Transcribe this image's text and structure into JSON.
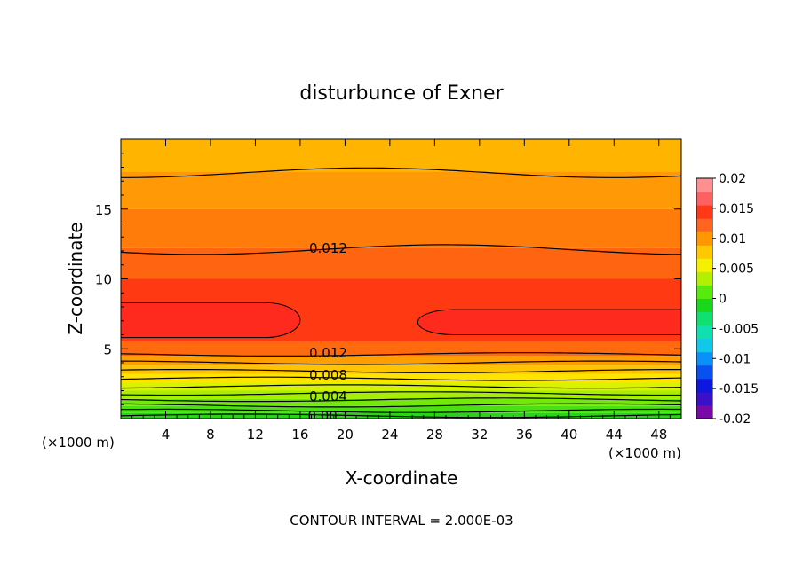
{
  "chart_data": {
    "type": "contour",
    "title": "disturbunce of Exner",
    "xlabel": "X-coordinate",
    "ylabel": "Z-coordinate",
    "x_unit_left": "(×1000 m)",
    "x_unit_right": "(×1000 m)",
    "xlim": [
      0,
      50
    ],
    "ylim": [
      0,
      20
    ],
    "x_ticks": [
      4,
      8,
      12,
      16,
      20,
      24,
      28,
      32,
      36,
      40,
      44,
      48
    ],
    "y_ticks": [
      5,
      10,
      15
    ],
    "footer": "CONTOUR INTERVAL = 2.000E-03",
    "contour_interval": 0.002,
    "colorbar": {
      "levels": [
        -0.02,
        -0.0175,
        -0.015,
        -0.0125,
        -0.01,
        -0.0075,
        -0.005,
        -0.0025,
        0,
        0.0025,
        0.005,
        0.0075,
        0.01,
        0.0125,
        0.015,
        0.0175,
        0.02
      ],
      "colors": [
        "#7a0aa8",
        "#3a10c8",
        "#0c18e0",
        "#0850f0",
        "#0a90f8",
        "#10c8e8",
        "#10e0b0",
        "#10e070",
        "#18d81c",
        "#58ea0c",
        "#b0f000",
        "#f4f000",
        "#ffc800",
        "#ff9800",
        "#ff6420",
        "#ff3818",
        "#ff6060",
        "#ff9090"
      ],
      "labels": [
        "0.02",
        "0.015",
        "0.01",
        "0.005",
        "0",
        "-0.005",
        "-0.01",
        "-0.015",
        "-0.02"
      ]
    },
    "bands": [
      {
        "z_range": [
          0.0,
          0.4
        ],
        "color": "#2cd21a"
      },
      {
        "z_range": [
          0.4,
          0.9
        ],
        "color": "#4ae014"
      },
      {
        "z_range": [
          0.9,
          1.4
        ],
        "color": "#74e80c"
      },
      {
        "z_range": [
          1.4,
          2.0
        ],
        "color": "#a6ee04"
      },
      {
        "z_range": [
          2.0,
          2.6
        ],
        "color": "#d8f200"
      },
      {
        "z_range": [
          2.6,
          3.2
        ],
        "color": "#ffe400"
      },
      {
        "z_range": [
          3.2,
          3.8
        ],
        "color": "#ffc400"
      },
      {
        "z_range": [
          3.8,
          4.5
        ],
        "color": "#ff9e00"
      },
      {
        "z_range": [
          4.5,
          5.5
        ],
        "color": "#ff6a0e"
      },
      {
        "z_range": [
          5.5,
          10.0
        ],
        "color": "#ff3a12"
      },
      {
        "z_range": [
          10.0,
          12.2
        ],
        "color": "#ff6410"
      },
      {
        "z_range": [
          12.2,
          15.0
        ],
        "color": "#ff7c0a"
      },
      {
        "z_range": [
          15.0,
          17.7
        ],
        "color": "#ff9a06"
      },
      {
        "z_range": [
          17.7,
          20.0
        ],
        "color": "#ffb400"
      }
    ],
    "maxima_regions": [
      {
        "x_range": [
          0,
          16
        ],
        "z_range": [
          5.8,
          8.3
        ],
        "color": "#ff2a1e"
      },
      {
        "x_range": [
          26.5,
          50
        ],
        "z_range": [
          6.0,
          7.8
        ],
        "color": "#ff2a1e"
      }
    ],
    "contour_lines": [
      {
        "z": 0.2
      },
      {
        "z": 0.55
      },
      {
        "z": 0.95
      },
      {
        "z": 1.35
      },
      {
        "z": 1.8
      },
      {
        "z": 2.3
      },
      {
        "z": 2.85
      },
      {
        "z": 3.4
      },
      {
        "z": 4.0
      },
      {
        "z": 4.6
      },
      {
        "z": 12.1
      },
      {
        "z": 17.6
      }
    ],
    "contour_labels": [
      {
        "text": "0.012",
        "x": 18.5,
        "z": 12.2
      },
      {
        "text": "0.012",
        "x": 18.5,
        "z": 4.7
      },
      {
        "text": "0.008",
        "x": 18.5,
        "z": 3.1
      },
      {
        "text": "0.004",
        "x": 18.5,
        "z": 1.6
      },
      {
        "text": "0.00",
        "x": 18.0,
        "z": 0.2
      }
    ]
  }
}
